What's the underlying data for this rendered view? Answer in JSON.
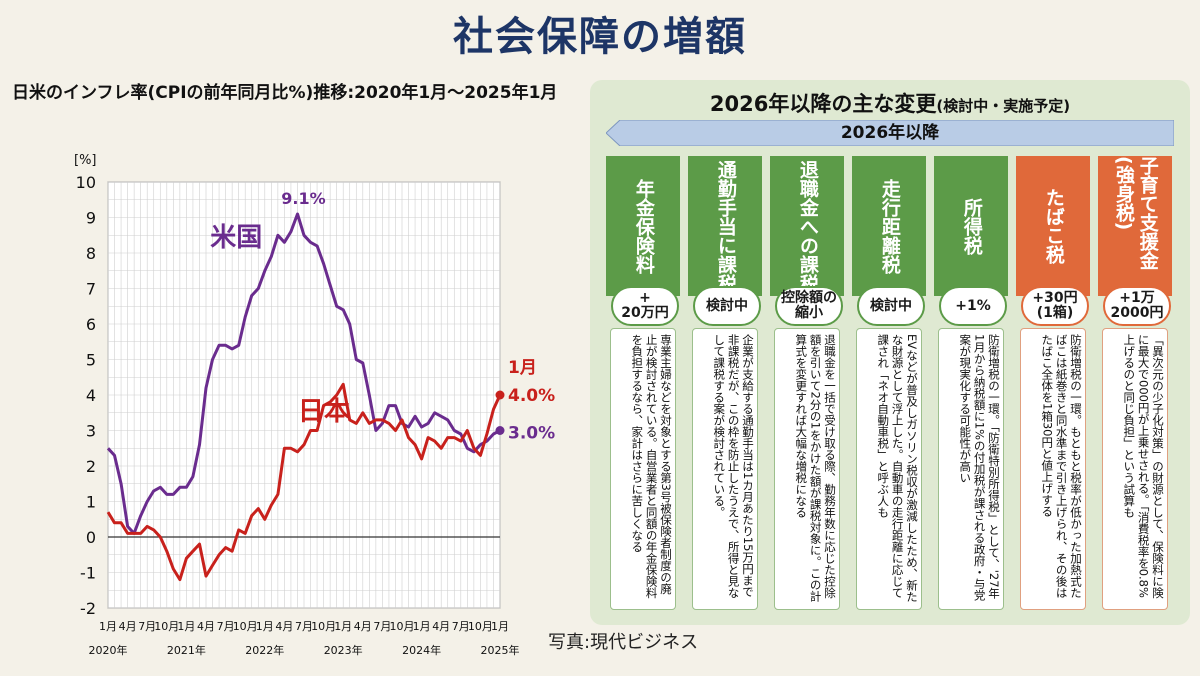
{
  "title": "社会保障の増額",
  "subtitle": "日米のインフレ率(CPIの前年同月比%)推移:2020年1月〜2025年1月",
  "credit": "写真:現代ビジネス",
  "colors": {
    "us": "#6a2c8e",
    "japan": "#c8211c",
    "green": "#5c9b48",
    "orange": "#e0693a",
    "navy": "#1d3566"
  },
  "chart_data": {
    "type": "line",
    "unit_label": "[%]",
    "ylim": [
      -2,
      10
    ],
    "yticks": [
      "10",
      "9",
      "8",
      "7",
      "6",
      "5",
      "4",
      "3",
      "2",
      "1",
      "0",
      "-1",
      "-2"
    ],
    "x_tick_labels": [
      "1月",
      "4月",
      "7月",
      "10月",
      "1月",
      "4月",
      "7月",
      "10月",
      "1月",
      "4月",
      "7月",
      "10月",
      "1月",
      "4月",
      "7月",
      "10月",
      "1月",
      "4月",
      "7月",
      "10月",
      "1月"
    ],
    "year_labels": [
      "2020年",
      "2021年",
      "2022年",
      "2023年",
      "2024年",
      "2025年"
    ],
    "series": [
      {
        "name": "米国",
        "color": "#6a2c8e",
        "peak_label": "9.1%",
        "end_label": "3.0%",
        "values": [
          2.5,
          2.3,
          1.5,
          0.3,
          0.1,
          0.6,
          1.0,
          1.3,
          1.4,
          1.2,
          1.2,
          1.4,
          1.4,
          1.7,
          2.6,
          4.2,
          5.0,
          5.4,
          5.4,
          5.3,
          5.4,
          6.2,
          6.8,
          7.0,
          7.5,
          7.9,
          8.5,
          8.3,
          8.6,
          9.1,
          8.5,
          8.3,
          8.2,
          7.7,
          7.1,
          6.5,
          6.4,
          6.0,
          5.0,
          4.9,
          4.0,
          3.0,
          3.2,
          3.7,
          3.7,
          3.2,
          3.1,
          3.4,
          3.1,
          3.2,
          3.5,
          3.4,
          3.3,
          3.0,
          2.9,
          2.5,
          2.4,
          2.6,
          2.7,
          2.9,
          3.0
        ]
      },
      {
        "name": "日本",
        "color": "#c8211c",
        "end_annot_month": "1月",
        "end_label": "4.0%",
        "values": [
          0.7,
          0.4,
          0.4,
          0.1,
          0.1,
          0.1,
          0.3,
          0.2,
          0.0,
          -0.4,
          -0.9,
          -1.2,
          -0.6,
          -0.4,
          -0.2,
          -1.1,
          -0.8,
          -0.5,
          -0.3,
          -0.4,
          0.2,
          0.1,
          0.6,
          0.8,
          0.5,
          0.9,
          1.2,
          2.5,
          2.5,
          2.4,
          2.6,
          3.0,
          3.0,
          3.7,
          3.8,
          4.0,
          4.3,
          3.3,
          3.2,
          3.5,
          3.2,
          3.3,
          3.3,
          3.2,
          3.0,
          3.3,
          2.8,
          2.6,
          2.2,
          2.8,
          2.7,
          2.5,
          2.8,
          2.8,
          2.7,
          3.0,
          2.5,
          2.3,
          2.9,
          3.6,
          4.0
        ]
      }
    ]
  },
  "panel": {
    "title": "2026年以降の主な変更",
    "title_paren": "(検討中・実施予定)",
    "period": "2026年以降",
    "columns": [
      {
        "head": "年金保険料",
        "amount_line1": "+",
        "amount_line2": "20万円",
        "body": "専業主婦などを対象とする第3号被保険者制度の廃止が検討されている。自営業者と同額の年金保険料を負担するなら、家計はさらに苦しくなる",
        "theme": "green"
      },
      {
        "head": "通勤手当に課税",
        "amount_line1": "検討中",
        "amount_line2": "",
        "body": "企業が支給する通勤手当は1カ月あたり15万円まで非課税だが、この枠を防止したうえで、所得と見なして課税する案が検討されている。",
        "theme": "green"
      },
      {
        "head": "退職金への課税",
        "amount_line1": "控除額の",
        "amount_line2": "縮小",
        "body": "退職金を一括で受け取る際、勤務年数に応じた控除額を引いて2分の1をかけた額が課税対象に。この計算式を変更すれば大幅な増税になる",
        "theme": "green"
      },
      {
        "head": "走行距離税",
        "amount_line1": "検討中",
        "amount_line2": "",
        "body": "EVなどが普及しガソリン税収が激減したため、新たな財源として浮上した。自動車の走行距離に応じて課され「ネオ自動車税」と呼ぶ人も",
        "theme": "green"
      },
      {
        "head": "所得税",
        "amount_line1": "+1%",
        "amount_line2": "",
        "body": "防衛増税の一環。「防衛特別所得税」として、'27年1月から納税額に1%の付加税が課される政府・与党案が現実化する可能性が高い",
        "theme": "green"
      },
      {
        "head": "たばこ税",
        "amount_line1": "+30円",
        "amount_line2": "(1箱)",
        "body": "防衛増税の一環。もともと税率が低かった加熱式たばこは紙巻きと同水準まで引き上げられ、その後はたばこ全体を1箱30円と値上げする",
        "theme": "orange"
      },
      {
        "head": "子育て支援金(強身税)",
        "amount_line1": "+1万",
        "amount_line2": "2000円",
        "body": "「異次元の少子化対策」の財源として、保険料に険に最大で000円が上乗せされる。「消費税率を0.8%上げるのと同じ負担」という試算も",
        "theme": "orange"
      }
    ]
  }
}
